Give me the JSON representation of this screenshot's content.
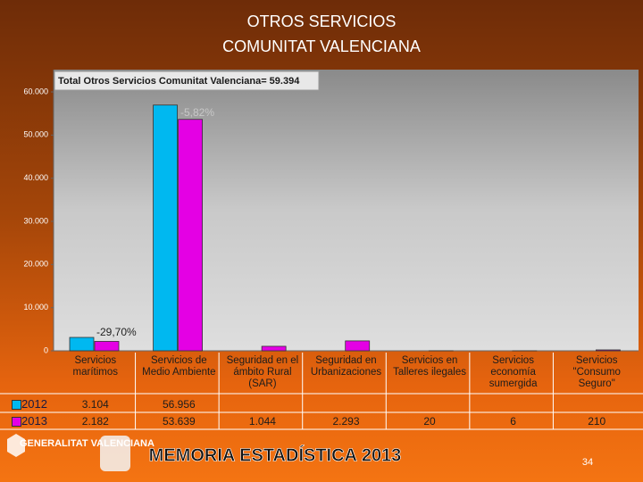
{
  "title_lines": [
    "OTROS SERVICIOS",
    "COMUNITAT VALENCIANA"
  ],
  "chart_data": {
    "type": "bar",
    "annotation_box": "Total Otros Servicios Comunitat Valenciana= 59.394",
    "annotations": [
      "-5,82%",
      "-29,70%"
    ],
    "categories": [
      "Servicios marítimos",
      "Servicios de Medio Ambiente",
      "Seguridad en el ámbito Rural (SAR)",
      "Seguridad en Urbanizaciones",
      "Servicios en Talleres ilegales",
      "Servicios economía sumergida",
      "Servicios \"Consumo Seguro\""
    ],
    "series": [
      {
        "name": "2012",
        "color": "#00b8f0",
        "values": [
          3104,
          56956,
          null,
          null,
          null,
          null,
          null
        ],
        "value_labels": [
          "3.104",
          "56.956",
          null,
          null,
          null,
          null,
          null
        ]
      },
      {
        "name": "2013",
        "color": "#e400e4",
        "values": [
          2182,
          53639,
          1044,
          2293,
          20,
          6,
          210
        ],
        "value_labels": [
          "2.182",
          "53.639",
          "1.044",
          "2.293",
          "20",
          "6",
          "210"
        ]
      }
    ],
    "ylim": [
      0,
      60000
    ],
    "yticks": [
      0,
      {
        "value": 10000,
        "label": "10.000"
      },
      {
        "value": 20000,
        "label": "20.000"
      },
      {
        "value": 30000,
        "label": "30.000"
      },
      {
        "value": 40000,
        "label": "40.000"
      },
      {
        "value": 50000,
        "label": "50.000"
      },
      {
        "value": 60000,
        "label": "60.000"
      }
    ],
    "grid": false
  },
  "footer": {
    "logo": "GENERALITAT VALENCIANA",
    "memoria": "MEMORIA ESTADÍSTICA 2013",
    "page": "34"
  }
}
